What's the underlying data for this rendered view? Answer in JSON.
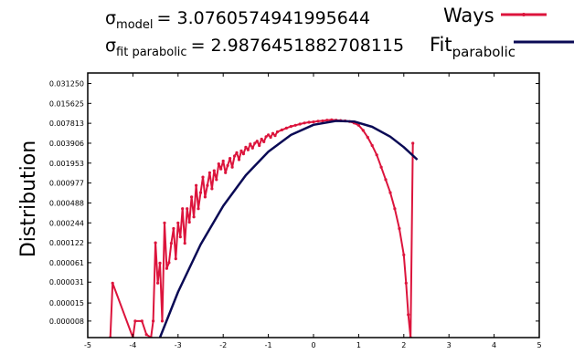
{
  "chart_data": {
    "type": "line",
    "title": "",
    "xlabel": "",
    "ylabel": "Distribution",
    "xlim": [
      -5,
      5
    ],
    "ylim": [
      4.5e-06,
      0.045
    ],
    "y_scale": "log2",
    "grid": false,
    "legend_position": "top-right",
    "x_ticks": [
      "-5",
      "-4",
      "-3",
      "-2",
      "-1",
      "0",
      "1",
      "2",
      "3",
      "4",
      "5"
    ],
    "y_ticks": [
      "0.031250",
      "0.015625",
      "0.007813",
      "0.003906",
      "0.001953",
      "0.000977",
      "0.000488",
      "0.000244",
      "0.000122",
      "0.000061",
      "0.000031",
      "0.000015",
      "0.000008"
    ],
    "annotations": {
      "sigma_model": {
        "symbol": "σ",
        "subscript": "model",
        "value": "= 3.0760574941995644"
      },
      "sigma_fit": {
        "symbol": "σ",
        "subscript": "fit parabolic",
        "value": "= 2.9876451882708115"
      }
    },
    "series": [
      {
        "name": "Ways",
        "legend_main": "Ways",
        "legend_sub": "",
        "color": "#dc143c",
        "style": "line-with-points",
        "x": [
          -4.5,
          -4.45,
          -4.0,
          -3.95,
          -3.8,
          -3.7,
          -3.6,
          -3.55,
          -3.5,
          -3.45,
          -3.4,
          -3.35,
          -3.3,
          -3.25,
          -3.2,
          -3.15,
          -3.1,
          -3.05,
          -3.0,
          -2.95,
          -2.9,
          -2.85,
          -2.8,
          -2.75,
          -2.7,
          -2.65,
          -2.6,
          -2.55,
          -2.5,
          -2.45,
          -2.4,
          -2.35,
          -2.3,
          -2.25,
          -2.2,
          -2.15,
          -2.1,
          -2.05,
          -2.0,
          -1.95,
          -1.9,
          -1.85,
          -1.8,
          -1.75,
          -1.7,
          -1.65,
          -1.6,
          -1.55,
          -1.5,
          -1.45,
          -1.4,
          -1.35,
          -1.3,
          -1.25,
          -1.2,
          -1.15,
          -1.1,
          -1.05,
          -1.0,
          -0.95,
          -0.9,
          -0.85,
          -0.8,
          -0.7,
          -0.6,
          -0.5,
          -0.4,
          -0.3,
          -0.2,
          -0.1,
          0.0,
          0.1,
          0.2,
          0.3,
          0.4,
          0.5,
          0.6,
          0.7,
          0.8,
          0.9,
          1.0,
          1.1,
          1.2,
          1.3,
          1.4,
          1.5,
          1.6,
          1.7,
          1.8,
          1.9,
          2.0,
          2.05,
          2.1,
          2.15,
          2.2
        ],
        "y": [
          4e-06,
          3e-05,
          4e-06,
          8e-06,
          8e-06,
          5e-06,
          4e-06,
          8e-06,
          0.000122,
          3e-05,
          6e-05,
          8e-06,
          0.000244,
          5e-05,
          6.1e-05,
          0.00012,
          0.0002,
          7e-05,
          0.000244,
          0.00015,
          0.0004,
          0.00012,
          0.0004,
          0.00025,
          0.0006,
          0.0003,
          0.0009,
          0.0004,
          0.0007,
          0.0012,
          0.0006,
          0.0009,
          0.0014,
          0.0008,
          0.0015,
          0.0011,
          0.0019,
          0.0016,
          0.0021,
          0.0014,
          0.0018,
          0.0023,
          0.0017,
          0.0025,
          0.0028,
          0.0022,
          0.003,
          0.0027,
          0.0034,
          0.0031,
          0.0038,
          0.0033,
          0.0039,
          0.0042,
          0.0036,
          0.0045,
          0.0041,
          0.0049,
          0.0052,
          0.0048,
          0.0055,
          0.0051,
          0.0058,
          0.0062,
          0.0066,
          0.007,
          0.0073,
          0.0076,
          0.0079,
          0.0081,
          0.0082,
          0.0084,
          0.0085,
          0.0087,
          0.0088,
          0.0087,
          0.0086,
          0.0085,
          0.0083,
          0.0079,
          0.0073,
          0.0061,
          0.0048,
          0.0036,
          0.0026,
          0.0017,
          0.0011,
          0.0007,
          0.0004,
          0.0002,
          8e-05,
          3e-05,
          1e-05,
          4e-06,
          0.0039
        ]
      },
      {
        "name": "Fit parabolic",
        "legend_main": "Fit",
        "legend_sub": "parabolic",
        "color": "#0a0a55",
        "style": "line",
        "x": [
          -3.4,
          -3.0,
          -2.5,
          -2.0,
          -1.5,
          -1.0,
          -0.5,
          0.0,
          0.5,
          0.9,
          1.3,
          1.7,
          2.0,
          2.3
        ],
        "y": [
          4.2e-06,
          2.2e-05,
          0.000115,
          0.00044,
          0.00128,
          0.0029,
          0.0052,
          0.0074,
          0.0085,
          0.0083,
          0.0069,
          0.0049,
          0.0034,
          0.0022
        ]
      }
    ]
  }
}
